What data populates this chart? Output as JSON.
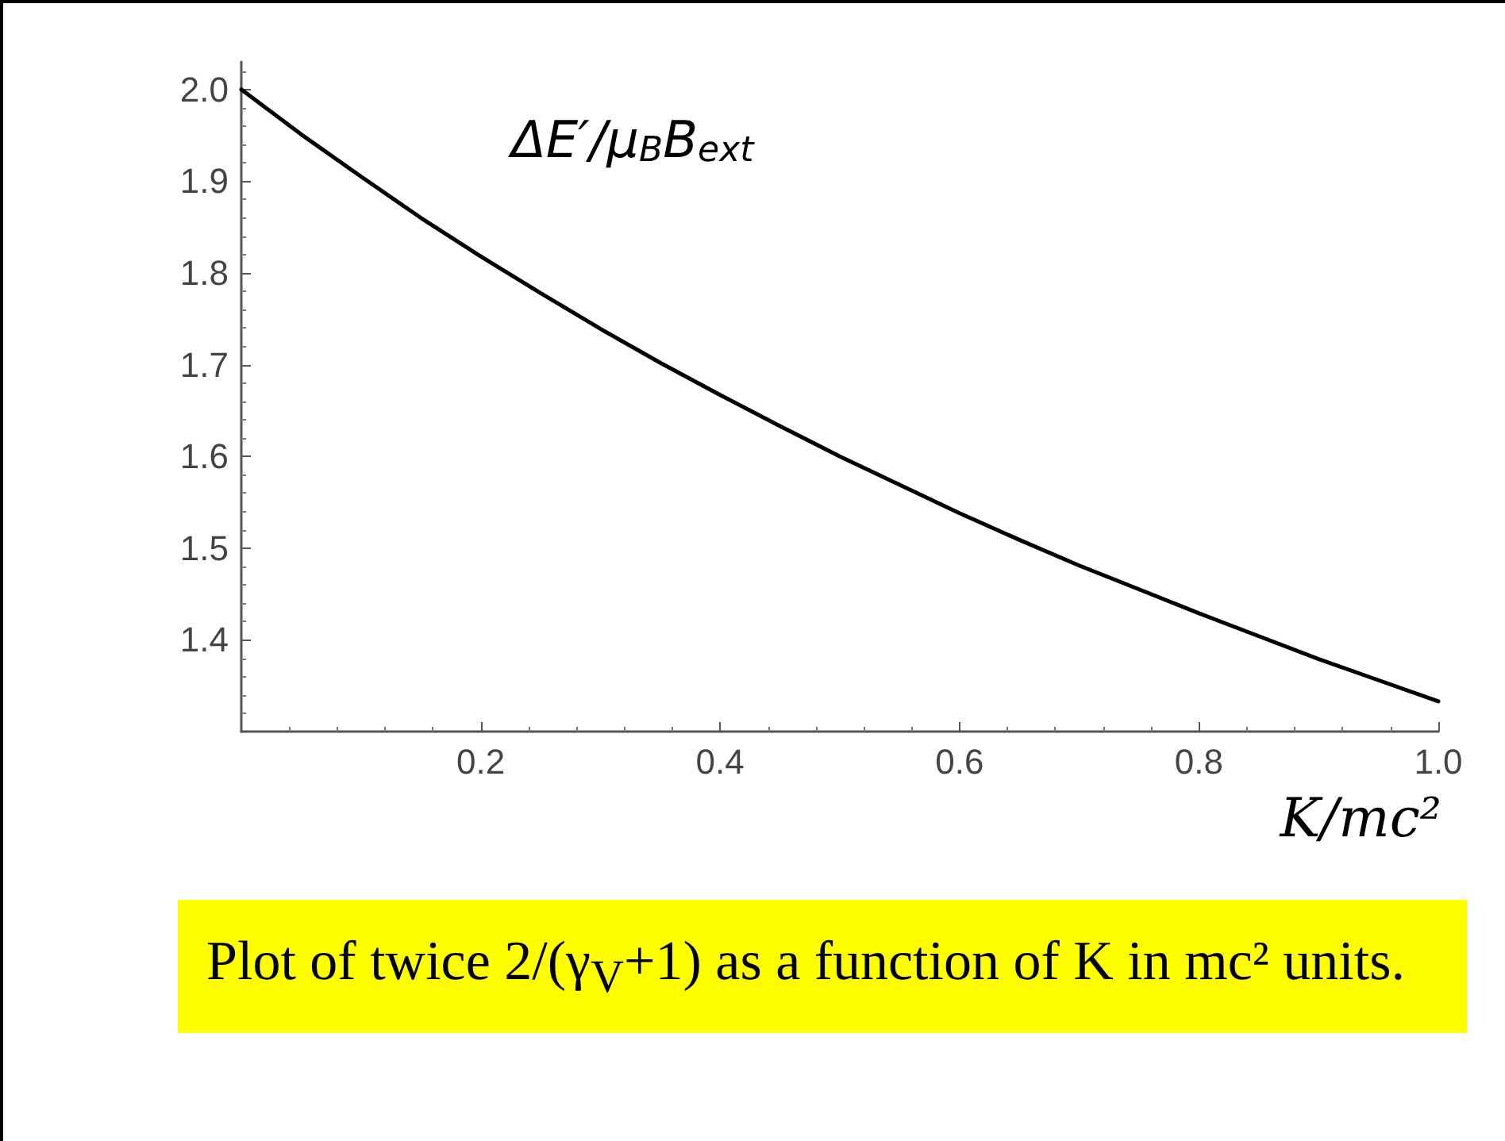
{
  "chart_data": {
    "type": "line",
    "xlabel": "K/mc²",
    "ylabel": "ΔE′/μ$_{B}$B$_{ext}$",
    "x": [
      0,
      0.05,
      0.1,
      0.15,
      0.2,
      0.25,
      0.3,
      0.35,
      0.4,
      0.45,
      0.5,
      0.55,
      0.6,
      0.65,
      0.7,
      0.75,
      0.8,
      0.85,
      0.9,
      0.95,
      1.0
    ],
    "series": [
      {
        "color": "#000000",
        "values": [
          2.0,
          1.951,
          1.905,
          1.86,
          1.818,
          1.778,
          1.739,
          1.702,
          1.667,
          1.633,
          1.6,
          1.569,
          1.538,
          1.509,
          1.481,
          1.455,
          1.429,
          1.404,
          1.379,
          1.356,
          1.333
        ]
      }
    ],
    "xlim": [
      0,
      1.0
    ],
    "xticks": [
      0.2,
      0.4,
      0.6,
      0.8,
      {
        "value": 1.0,
        "label": "1.0"
      }
    ],
    "ylim": [
      1.3,
      2.03
    ],
    "yticks": [
      1.4,
      1.5,
      1.6,
      1.7,
      1.8,
      1.9,
      {
        "value": 2.0,
        "label": "2.0"
      }
    ],
    "grid": false,
    "marker": "none",
    "line_style": "solid",
    "annotations": [
      "Plot of twice 2/(γ$_{V}$+1) as a function of K in mc² units."
    ]
  }
}
